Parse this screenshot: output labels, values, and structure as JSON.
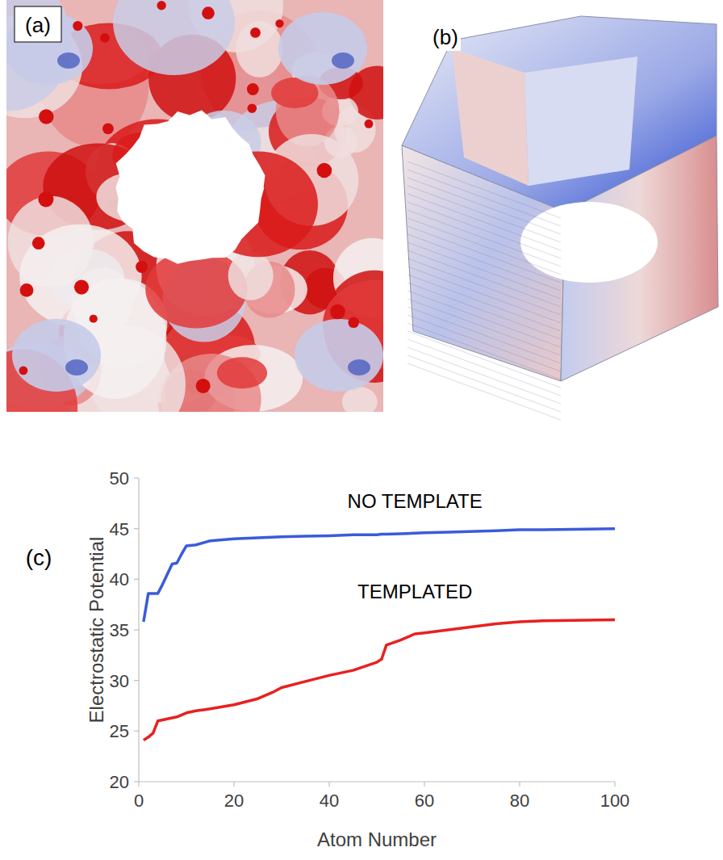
{
  "figure": {
    "panel_labels": [
      "(a)",
      "(b)",
      "(c)"
    ]
  },
  "chart_data": {
    "type": "line",
    "x_label": "Atom Number",
    "y_label": "Electrostatic Potential",
    "x": [
      1,
      2,
      3,
      4,
      5,
      6,
      7,
      8,
      9,
      10,
      12,
      15,
      20,
      25,
      28,
      30,
      35,
      40,
      45,
      50,
      51,
      52,
      55,
      58,
      60,
      65,
      75,
      80,
      85,
      100
    ],
    "series": [
      {
        "name": "NO TEMPLATE",
        "color": "#3b5bdb",
        "values": [
          35.8,
          38.6,
          38.6,
          38.6,
          39.5,
          40.5,
          41.5,
          41.6,
          42.5,
          43.3,
          43.4,
          43.8,
          44.0,
          44.1,
          44.15,
          44.2,
          44.25,
          44.3,
          44.4,
          44.4,
          44.45,
          44.45,
          44.5,
          44.55,
          44.6,
          44.65,
          44.8,
          44.9,
          44.9,
          45.0
        ]
      },
      {
        "name": "TEMPLATED",
        "color": "#e8201f",
        "values": [
          24.1,
          24.4,
          24.8,
          26.0,
          26.1,
          26.2,
          26.3,
          26.4,
          26.6,
          26.8,
          27.0,
          27.2,
          27.6,
          28.2,
          28.8,
          29.3,
          29.9,
          30.5,
          31.0,
          31.8,
          32.1,
          33.5,
          34.0,
          34.6,
          34.7,
          35.0,
          35.6,
          35.8,
          35.9,
          36.0
        ]
      }
    ],
    "xlim": [
      0,
      100
    ],
    "xticks": [
      0,
      20,
      40,
      60,
      80,
      100
    ],
    "ylim": [
      20,
      50
    ],
    "yticks": [
      20,
      25,
      30,
      35,
      40,
      45,
      50
    ],
    "grid": false
  }
}
